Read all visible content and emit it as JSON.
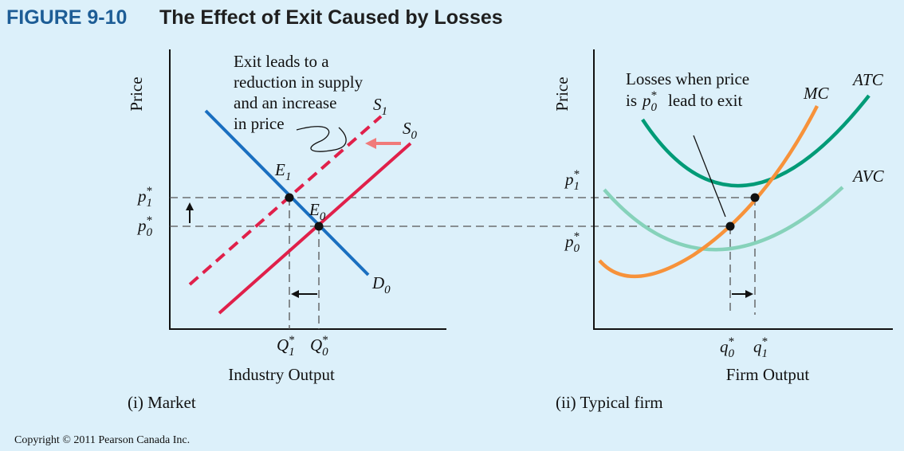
{
  "header": {
    "figure": "FIGURE 9-10",
    "title": "The Effect of Exit Caused by Losses"
  },
  "market": {
    "y_axis_label": "Price",
    "x_axis_label": "Industry Output",
    "caption": "(i) Market",
    "annotation": [
      "Exit leads to a",
      "reduction in supply",
      "and an increase",
      "in price"
    ],
    "labels": {
      "s1": {
        "base": "S",
        "sub": "1"
      },
      "s0": {
        "base": "S",
        "sub": "0"
      },
      "e1": {
        "base": "E",
        "sub": "1"
      },
      "e0": {
        "base": "E",
        "sub": "0"
      },
      "d0": {
        "base": "D",
        "sub": "0"
      },
      "p1": {
        "base": "p",
        "sub": "1",
        "sup": "*"
      },
      "p0": {
        "base": "p",
        "sub": "0",
        "sup": "*"
      },
      "q1": {
        "base": "Q",
        "sub": "1",
        "sup": "*"
      },
      "q0": {
        "base": "Q",
        "sub": "0",
        "sup": "*"
      }
    }
  },
  "firm": {
    "y_axis_label": "Price",
    "x_axis_label": "Firm Output",
    "caption": "(ii) Typical firm",
    "annotation": {
      "line1": "Losses when price",
      "line2_start": "is",
      "symbol": {
        "base": "p",
        "sub": "0",
        "sup": "*"
      },
      "line2_end": "lead to exit"
    },
    "labels": {
      "mc": {
        "base": "MC"
      },
      "atc": {
        "base": "ATC"
      },
      "avc": {
        "base": "AVC"
      },
      "p1": {
        "base": "p",
        "sub": "1",
        "sup": "*"
      },
      "p0": {
        "base": "p",
        "sub": "0",
        "sup": "*"
      },
      "q0": {
        "base": "q",
        "sub": "0",
        "sup": "*"
      },
      "q1": {
        "base": "q",
        "sub": "1",
        "sup": "*"
      }
    }
  },
  "footer": {
    "copyright": "Copyright © 2011 Pearson Canada Inc."
  }
}
